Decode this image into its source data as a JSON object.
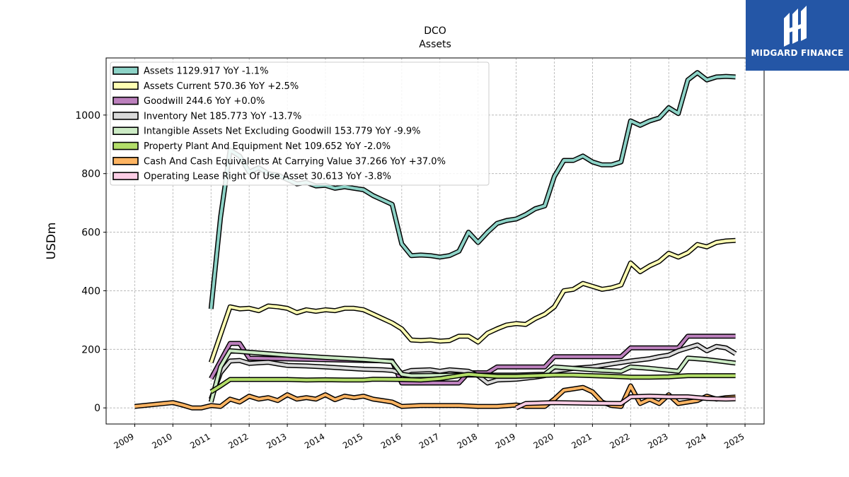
{
  "chart_data": {
    "type": "line",
    "title": "DCO",
    "subtitle": "Assets",
    "ylabel": "USDm",
    "xlabel": "",
    "xlim": [
      2008.25,
      2025.5
    ],
    "ylim": [
      -55,
      1195
    ],
    "x_ticks": [
      "2009",
      "2010",
      "2011",
      "2012",
      "2013",
      "2014",
      "2015",
      "2016",
      "2017",
      "2018",
      "2019",
      "2020",
      "2021",
      "2022",
      "2023",
      "2024",
      "2025"
    ],
    "y_ticks": [
      "0",
      "200",
      "400",
      "600",
      "800",
      "1000"
    ],
    "grid": true,
    "legend_position": "top-left",
    "series": [
      {
        "name": "Assets",
        "legend": "Assets  1129.917 YoY -1.1%",
        "color": "#8dd3c7",
        "points": [
          [
            2011.0,
            338
          ],
          [
            2011.25,
            650
          ],
          [
            2011.5,
            880
          ],
          [
            2011.75,
            860
          ],
          [
            2012.0,
            805
          ],
          [
            2012.25,
            820
          ],
          [
            2012.5,
            800
          ],
          [
            2012.75,
            795
          ],
          [
            2013.0,
            780
          ],
          [
            2013.25,
            765
          ],
          [
            2013.5,
            770
          ],
          [
            2013.75,
            758
          ],
          [
            2014.0,
            760
          ],
          [
            2014.25,
            750
          ],
          [
            2014.5,
            755
          ],
          [
            2014.75,
            750
          ],
          [
            2015.0,
            745
          ],
          [
            2015.25,
            725
          ],
          [
            2015.5,
            710
          ],
          [
            2015.75,
            695
          ],
          [
            2016.0,
            560
          ],
          [
            2016.25,
            520
          ],
          [
            2016.5,
            522
          ],
          [
            2016.75,
            520
          ],
          [
            2017.0,
            515
          ],
          [
            2017.25,
            520
          ],
          [
            2017.5,
            535
          ],
          [
            2017.75,
            600
          ],
          [
            2018.0,
            565
          ],
          [
            2018.25,
            600
          ],
          [
            2018.5,
            630
          ],
          [
            2018.75,
            640
          ],
          [
            2019.0,
            645
          ],
          [
            2019.25,
            660
          ],
          [
            2019.5,
            680
          ],
          [
            2019.75,
            690
          ],
          [
            2020.0,
            790
          ],
          [
            2020.25,
            845
          ],
          [
            2020.5,
            845
          ],
          [
            2020.75,
            860
          ],
          [
            2021.0,
            840
          ],
          [
            2021.25,
            830
          ],
          [
            2021.5,
            830
          ],
          [
            2021.75,
            840
          ],
          [
            2022.0,
            980
          ],
          [
            2022.25,
            965
          ],
          [
            2022.5,
            980
          ],
          [
            2022.75,
            990
          ],
          [
            2023.0,
            1025
          ],
          [
            2023.25,
            1005
          ],
          [
            2023.5,
            1120
          ],
          [
            2023.75,
            1145
          ],
          [
            2024.0,
            1120
          ],
          [
            2024.25,
            1130
          ],
          [
            2024.5,
            1132
          ],
          [
            2024.75,
            1130
          ]
        ]
      },
      {
        "name": "Assets Current",
        "legend": "Assets Current  570.36 YoY +2.5%",
        "color": "#ffffb3",
        "points": [
          [
            2011.0,
            155
          ],
          [
            2011.25,
            250
          ],
          [
            2011.5,
            345
          ],
          [
            2011.75,
            338
          ],
          [
            2012.0,
            340
          ],
          [
            2012.25,
            332
          ],
          [
            2012.5,
            348
          ],
          [
            2012.75,
            345
          ],
          [
            2013.0,
            340
          ],
          [
            2013.25,
            325
          ],
          [
            2013.5,
            335
          ],
          [
            2013.75,
            330
          ],
          [
            2014.0,
            335
          ],
          [
            2014.25,
            332
          ],
          [
            2014.5,
            340
          ],
          [
            2014.75,
            340
          ],
          [
            2015.0,
            335
          ],
          [
            2015.25,
            320
          ],
          [
            2015.5,
            305
          ],
          [
            2015.75,
            290
          ],
          [
            2016.0,
            270
          ],
          [
            2016.25,
            232
          ],
          [
            2016.5,
            230
          ],
          [
            2016.75,
            232
          ],
          [
            2017.0,
            228
          ],
          [
            2017.25,
            230
          ],
          [
            2017.5,
            245
          ],
          [
            2017.75,
            245
          ],
          [
            2018.0,
            225
          ],
          [
            2018.25,
            255
          ],
          [
            2018.5,
            270
          ],
          [
            2018.75,
            283
          ],
          [
            2019.0,
            288
          ],
          [
            2019.25,
            285
          ],
          [
            2019.5,
            305
          ],
          [
            2019.75,
            320
          ],
          [
            2020.0,
            345
          ],
          [
            2020.25,
            400
          ],
          [
            2020.5,
            405
          ],
          [
            2020.75,
            425
          ],
          [
            2021.0,
            415
          ],
          [
            2021.25,
            405
          ],
          [
            2021.5,
            410
          ],
          [
            2021.75,
            420
          ],
          [
            2022.0,
            495
          ],
          [
            2022.25,
            465
          ],
          [
            2022.5,
            485
          ],
          [
            2022.75,
            500
          ],
          [
            2023.0,
            528
          ],
          [
            2023.25,
            515
          ],
          [
            2023.5,
            530
          ],
          [
            2023.75,
            558
          ],
          [
            2024.0,
            550
          ],
          [
            2024.25,
            565
          ],
          [
            2024.5,
            570
          ],
          [
            2024.75,
            572
          ]
        ]
      },
      {
        "name": "Goodwill",
        "legend": "Goodwill  244.6 YoY +0.0%",
        "color": "#bc80bd",
        "points": [
          [
            2011.0,
            100
          ],
          [
            2011.25,
            160
          ],
          [
            2011.5,
            220
          ],
          [
            2011.75,
            220
          ],
          [
            2012.0,
            170
          ],
          [
            2015.75,
            160
          ],
          [
            2016.0,
            85
          ],
          [
            2016.25,
            85
          ],
          [
            2017.5,
            85
          ],
          [
            2017.75,
            120
          ],
          [
            2018.25,
            120
          ],
          [
            2018.5,
            140
          ],
          [
            2019.75,
            140
          ],
          [
            2020.0,
            175
          ],
          [
            2021.75,
            175
          ],
          [
            2022.0,
            205
          ],
          [
            2023.25,
            205
          ],
          [
            2023.5,
            245
          ],
          [
            2024.75,
            245
          ]
        ]
      },
      {
        "name": "Inventory Net",
        "legend": "Inventory Net  185.773 YoY -13.7%",
        "color": "#d9d9d9",
        "points": [
          [
            2011.0,
            30
          ],
          [
            2011.25,
            120
          ],
          [
            2011.5,
            160
          ],
          [
            2011.75,
            162
          ],
          [
            2012.0,
            152
          ],
          [
            2012.25,
            154
          ],
          [
            2012.5,
            156
          ],
          [
            2012.75,
            150
          ],
          [
            2013.0,
            145
          ],
          [
            2013.5,
            143
          ],
          [
            2014.0,
            140
          ],
          [
            2015.0,
            132
          ],
          [
            2015.5,
            130
          ],
          [
            2015.75,
            128
          ],
          [
            2016.0,
            118
          ],
          [
            2016.25,
            128
          ],
          [
            2016.75,
            130
          ],
          [
            2017.0,
            125
          ],
          [
            2017.25,
            130
          ],
          [
            2017.75,
            125
          ],
          [
            2018.0,
            110
          ],
          [
            2018.25,
            85
          ],
          [
            2018.5,
            95
          ],
          [
            2019.0,
            98
          ],
          [
            2019.5,
            105
          ],
          [
            2019.75,
            110
          ],
          [
            2020.0,
            125
          ],
          [
            2020.5,
            135
          ],
          [
            2021.0,
            140
          ],
          [
            2021.5,
            150
          ],
          [
            2021.75,
            155
          ],
          [
            2022.0,
            160
          ],
          [
            2022.5,
            168
          ],
          [
            2022.75,
            175
          ],
          [
            2023.0,
            180
          ],
          [
            2023.25,
            195
          ],
          [
            2023.5,
            205
          ],
          [
            2023.75,
            215
          ],
          [
            2024.0,
            195
          ],
          [
            2024.25,
            210
          ],
          [
            2024.5,
            205
          ],
          [
            2024.75,
            185
          ]
        ]
      },
      {
        "name": "Intangible Assets Net Excluding Goodwill",
        "legend": "Intangible Assets Net Excluding Goodwill  153.779 YoY -9.9%",
        "color": "#ccebc5",
        "points": [
          [
            2011.0,
            20
          ],
          [
            2011.25,
            140
          ],
          [
            2011.5,
            195
          ],
          [
            2013.0,
            180
          ],
          [
            2014.0,
            172
          ],
          [
            2015.0,
            165
          ],
          [
            2015.75,
            158
          ],
          [
            2016.0,
            115
          ],
          [
            2016.25,
            110
          ],
          [
            2017.5,
            112
          ],
          [
            2018.25,
            112
          ],
          [
            2019.0,
            112
          ],
          [
            2019.75,
            115
          ],
          [
            2020.0,
            140
          ],
          [
            2020.5,
            135
          ],
          [
            2021.0,
            130
          ],
          [
            2021.75,
            125
          ],
          [
            2022.0,
            140
          ],
          [
            2022.5,
            135
          ],
          [
            2023.25,
            125
          ],
          [
            2023.5,
            170
          ],
          [
            2024.0,
            165
          ],
          [
            2024.75,
            153
          ]
        ]
      },
      {
        "name": "Property Plant And Equipment Net",
        "legend": "Property Plant And Equipment Net  109.652 YoY -2.0%",
        "color": "#b3de69",
        "points": [
          [
            2011.0,
            55
          ],
          [
            2011.25,
            75
          ],
          [
            2011.5,
            97
          ],
          [
            2012.0,
            97
          ],
          [
            2013.0,
            97
          ],
          [
            2013.5,
            95
          ],
          [
            2014.0,
            96
          ],
          [
            2014.5,
            95
          ],
          [
            2015.0,
            95
          ],
          [
            2015.25,
            98
          ],
          [
            2016.0,
            97
          ],
          [
            2016.5,
            95
          ],
          [
            2017.0,
            100
          ],
          [
            2017.5,
            110
          ],
          [
            2017.75,
            115
          ],
          [
            2018.0,
            112
          ],
          [
            2018.5,
            108
          ],
          [
            2019.0,
            108
          ],
          [
            2019.5,
            110
          ],
          [
            2020.0,
            112
          ],
          [
            2020.5,
            112
          ],
          [
            2021.0,
            110
          ],
          [
            2021.5,
            108
          ],
          [
            2022.0,
            105
          ],
          [
            2022.5,
            105
          ],
          [
            2023.0,
            106
          ],
          [
            2023.5,
            110
          ],
          [
            2024.0,
            110
          ],
          [
            2024.75,
            110
          ]
        ]
      },
      {
        "name": "Cash And Cash Equivalents At Carrying Value",
        "legend": "Cash And Cash Equivalents At Carrying Value  37.266 YoY +37.0%",
        "color": "#fdb462",
        "points": [
          [
            2009.0,
            5
          ],
          [
            2010.0,
            18
          ],
          [
            2010.25,
            10
          ],
          [
            2010.5,
            0
          ],
          [
            2010.75,
            0
          ],
          [
            2011.0,
            8
          ],
          [
            2011.25,
            5
          ],
          [
            2011.5,
            30
          ],
          [
            2011.75,
            20
          ],
          [
            2012.0,
            40
          ],
          [
            2012.25,
            30
          ],
          [
            2012.5,
            35
          ],
          [
            2012.75,
            25
          ],
          [
            2013.0,
            45
          ],
          [
            2013.25,
            30
          ],
          [
            2013.5,
            35
          ],
          [
            2013.75,
            30
          ],
          [
            2014.0,
            45
          ],
          [
            2014.25,
            28
          ],
          [
            2014.5,
            40
          ],
          [
            2014.75,
            35
          ],
          [
            2015.0,
            40
          ],
          [
            2015.25,
            30
          ],
          [
            2015.5,
            25
          ],
          [
            2015.75,
            20
          ],
          [
            2016.0,
            5
          ],
          [
            2016.5,
            8
          ],
          [
            2017.0,
            8
          ],
          [
            2017.5,
            8
          ],
          [
            2018.0,
            5
          ],
          [
            2018.5,
            5
          ],
          [
            2019.0,
            10
          ],
          [
            2019.25,
            5
          ],
          [
            2019.75,
            5
          ],
          [
            2020.0,
            30
          ],
          [
            2020.25,
            60
          ],
          [
            2020.5,
            65
          ],
          [
            2020.75,
            70
          ],
          [
            2021.0,
            55
          ],
          [
            2021.25,
            20
          ],
          [
            2021.5,
            8
          ],
          [
            2021.75,
            5
          ],
          [
            2022.0,
            75
          ],
          [
            2022.25,
            15
          ],
          [
            2022.5,
            30
          ],
          [
            2022.75,
            15
          ],
          [
            2023.0,
            45
          ],
          [
            2023.25,
            15
          ],
          [
            2023.75,
            25
          ],
          [
            2024.0,
            40
          ],
          [
            2024.25,
            30
          ],
          [
            2024.5,
            35
          ],
          [
            2024.75,
            37
          ]
        ]
      },
      {
        "name": "Operating Lease Right Of Use Asset",
        "legend": "Operating Lease Right Of Use Asset  30.613 YoY -3.8%",
        "color": "#fccde5",
        "points": [
          [
            2019.0,
            0
          ],
          [
            2019.25,
            15
          ],
          [
            2020.0,
            18
          ],
          [
            2021.0,
            16
          ],
          [
            2021.75,
            15
          ],
          [
            2022.0,
            38
          ],
          [
            2022.5,
            40
          ],
          [
            2023.0,
            38
          ],
          [
            2023.5,
            38
          ],
          [
            2024.0,
            32
          ],
          [
            2024.5,
            30
          ],
          [
            2024.75,
            31
          ]
        ]
      }
    ]
  },
  "logo": {
    "text": "MIDGARD FINANCE"
  }
}
